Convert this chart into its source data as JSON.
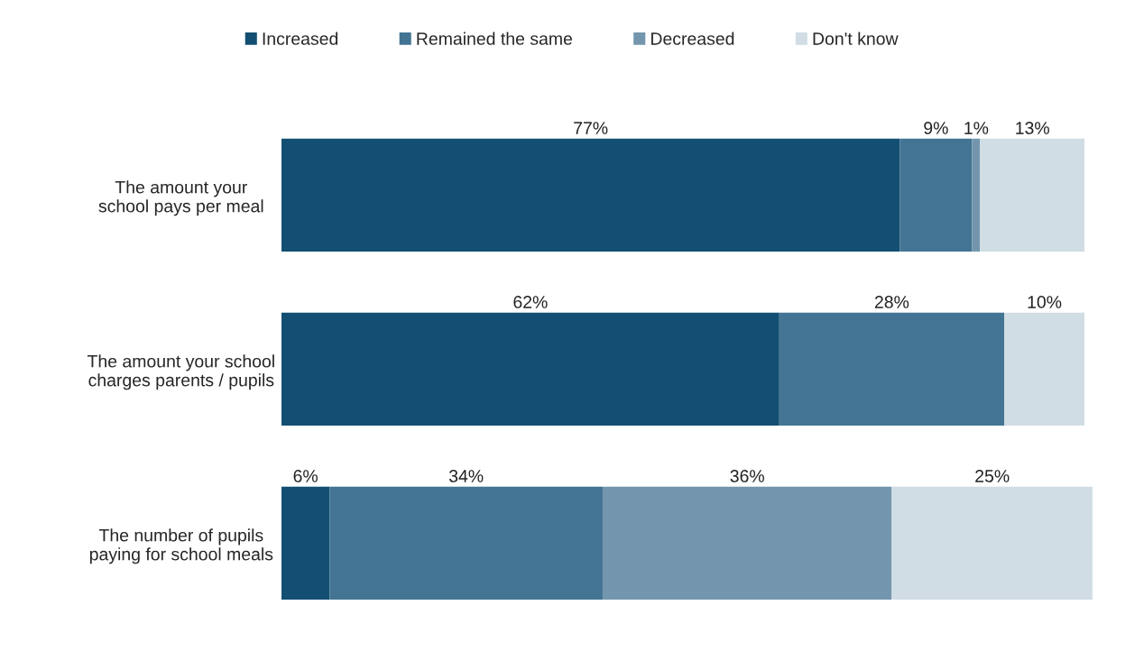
{
  "chart_data": {
    "type": "bar",
    "orientation": "horizontal",
    "stacked": true,
    "legend": "top",
    "categories": [
      "The amount your\nschool pays per meal",
      "The amount your school\ncharges parents / pupils",
      "The number of pupils\npaying for school meals"
    ],
    "series": [
      {
        "name": "Increased",
        "color": "#134f73",
        "values": [
          77,
          62,
          6
        ],
        "value_labels": [
          "77%",
          "62%",
          "6%"
        ]
      },
      {
        "name": "Remained the same",
        "color": "#437493",
        "values": [
          9,
          28,
          34
        ],
        "value_labels": [
          "9%",
          "28%",
          "34%"
        ]
      },
      {
        "name": "Decreased",
        "color": "#7396ae",
        "values": [
          1,
          null,
          36
        ],
        "value_labels": [
          "1%",
          null,
          "36%"
        ]
      },
      {
        "name": "Don't know",
        "color": "#d0dde5",
        "values": [
          13,
          10,
          25
        ],
        "value_labels": [
          "13%",
          "10%",
          "25%"
        ]
      }
    ]
  }
}
